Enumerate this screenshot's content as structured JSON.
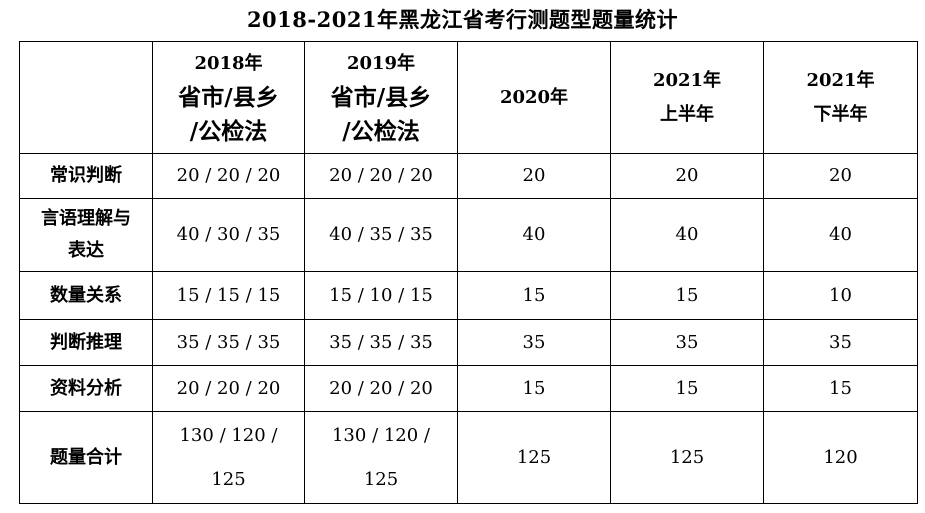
{
  "title": "2018-2021年黑龙江省考行测题型题量统计",
  "headers": [
    {
      "lines": []
    },
    {
      "lines": [
        "2018年",
        "省市/县乡",
        "/公检法"
      ]
    },
    {
      "lines": [
        "2019年",
        "省市/县乡",
        "/公检法"
      ]
    },
    {
      "lines": [
        "2020年"
      ]
    },
    {
      "lines": [
        "2021年",
        "上半年"
      ]
    },
    {
      "lines": [
        "2021年",
        "下半年"
      ]
    }
  ],
  "rows": [
    {
      "label_lines": [
        "常识判断"
      ],
      "values": [
        "20 / 20 / 20",
        "20 / 20 / 20",
        "20",
        "20",
        "20"
      ]
    },
    {
      "label_lines": [
        "言语理解与",
        "表达"
      ],
      "values": [
        "40 / 30 / 35",
        "40 / 35 / 35",
        "40",
        "40",
        "40"
      ]
    },
    {
      "label_lines": [
        "数量关系"
      ],
      "values": [
        "15 / 15 / 15",
        "15 / 10 / 15",
        "15",
        "15",
        "10"
      ]
    },
    {
      "label_lines": [
        "判断推理"
      ],
      "values": [
        "35 / 35 / 35",
        "35 / 35 / 35",
        "35",
        "35",
        "35"
      ]
    },
    {
      "label_lines": [
        "资料分析"
      ],
      "values": [
        "20 / 20 / 20",
        "20 / 20 / 20",
        "15",
        "15",
        "15"
      ]
    },
    {
      "label_lines": [
        "题量合计"
      ],
      "values_lines": [
        [
          "130 / 120 /",
          "125"
        ],
        [
          "130 / 120 /",
          "125"
        ],
        [
          "125"
        ],
        [
          "125"
        ],
        [
          "120"
        ]
      ]
    }
  ]
}
